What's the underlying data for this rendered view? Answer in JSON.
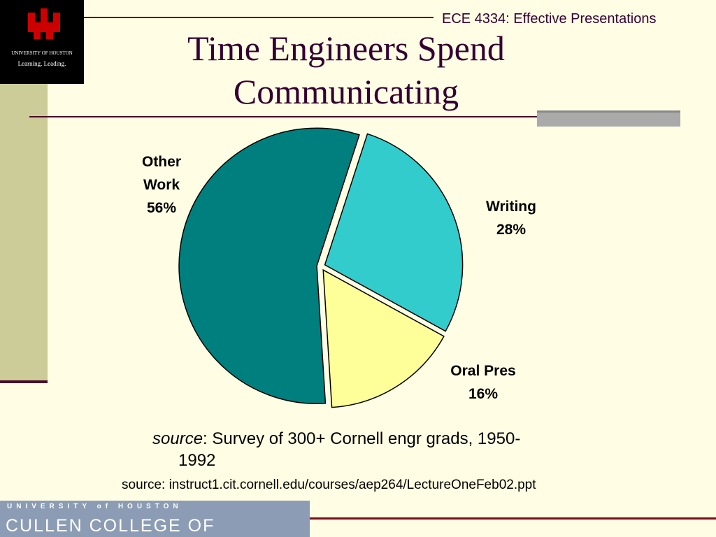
{
  "header": {
    "course": "ECE 4334: Effective Presentations"
  },
  "logo": {
    "name": "UNIVERSITY OF HOUSTON",
    "motto": "Learning. Leading."
  },
  "chart_data": {
    "type": "pie",
    "title": "Time Engineers Spend Communicating",
    "categories": [
      "Other Work",
      "Writing",
      "Oral Pres"
    ],
    "values": [
      56,
      28,
      16
    ],
    "value_labels": [
      "56%",
      "28%",
      "16%"
    ],
    "colors": [
      "#007f7f",
      "#33cccc",
      "#ffff99"
    ]
  },
  "notes": {
    "source_label": "source",
    "source_text": ": Survey of 300+ Cornell engr grads, 1950-1992",
    "url": "source: instruct1.cit.cornell.edu/courses/aep264/LectureOneFeb02.ppt"
  },
  "footer": {
    "university": "UNIVERSITY of HOUSTON",
    "college": "CULLEN COLLEGE OF ENGINEERING"
  }
}
